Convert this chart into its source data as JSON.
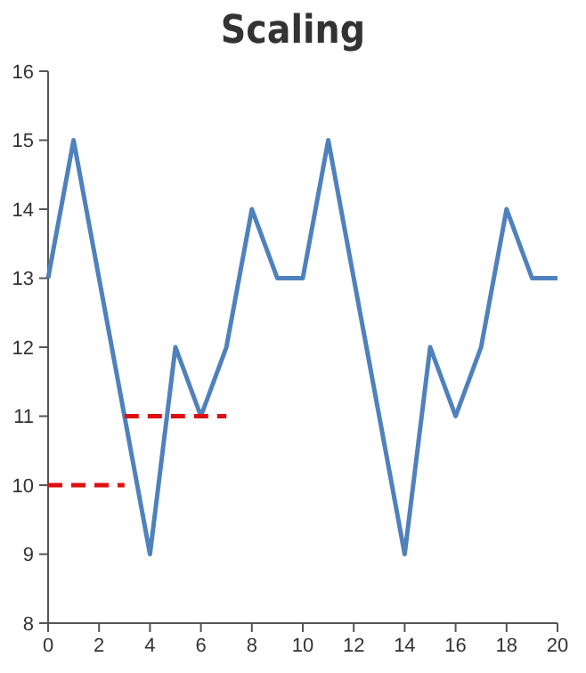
{
  "chart_data": {
    "type": "line",
    "title": "Scaling",
    "xlim": [
      0,
      20
    ],
    "xticks": [
      0,
      2,
      4,
      6,
      8,
      10,
      12,
      14,
      16,
      18,
      20
    ],
    "ylim": [
      8,
      16
    ],
    "yticks": [
      8,
      9,
      10,
      11,
      12,
      13,
      14,
      15,
      16
    ],
    "grid": false,
    "marker": "none",
    "x": [
      0,
      1,
      2,
      3,
      4,
      5,
      6,
      7,
      8,
      9,
      10,
      11,
      12,
      13,
      14,
      15,
      16,
      17,
      18,
      19,
      20
    ],
    "series": [
      {
        "color": "#4f81bc",
        "line_style": "solid",
        "values": [
          13,
          15,
          13,
          11,
          9,
          12,
          11,
          12,
          14,
          13,
          13,
          15,
          13,
          11,
          9,
          12,
          11,
          12,
          14,
          13,
          13
        ]
      },
      {
        "color": "#dd1111",
        "line_style": "dashed",
        "x": [
          0,
          3
        ],
        "values": [
          10,
          10
        ]
      },
      {
        "color": "#dd1111",
        "line_style": "dashed",
        "x": [
          3,
          7
        ],
        "values": [
          11,
          11
        ]
      }
    ]
  }
}
